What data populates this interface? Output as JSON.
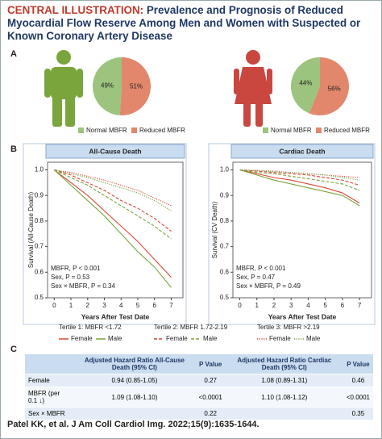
{
  "header": {
    "label": "CENTRAL ILLUSTRATION:",
    "title": "Prevalence and Prognosis of Reduced Myocardial Flow Reserve Among Men and Women with Suspected or Known Coronary Artery Disease"
  },
  "panels": [
    "A",
    "B",
    "C"
  ],
  "chart_data": [
    {
      "type": "pie",
      "categories": [
        "Normal MBFR",
        "Reduced MBFR"
      ],
      "values": [
        49,
        51
      ],
      "value_labels": [
        "49%",
        "51%"
      ],
      "colors": [
        "#9cc47e",
        "#e3876c"
      ]
    },
    {
      "type": "pie",
      "categories": [
        "Normal MBFR",
        "Reduced MBFR"
      ],
      "values": [
        44,
        56
      ],
      "value_labels": [
        "44%",
        "56%"
      ],
      "colors": [
        "#9cc47e",
        "#e3876c"
      ]
    },
    {
      "type": "line",
      "title": "All-Cause Death",
      "xlabel": "Years After Test Date",
      "ylabel": "Survival (All-Cause Death)",
      "x": [
        0,
        1,
        2,
        3,
        4,
        5,
        6,
        7
      ],
      "xlim": [
        -0.4,
        7.7
      ],
      "xticks": [
        0,
        1,
        2,
        3,
        4,
        5,
        6,
        7
      ],
      "ylim": [
        0.5,
        1.03
      ],
      "yticks": [
        0.5,
        0.6,
        0.7,
        0.8,
        0.9,
        {
          "value": 1,
          "label": "1.0"
        }
      ],
      "annotations": [
        "MBFR, P < 0.001",
        "Sex, P = 0.53",
        "Sex × MBFR, P = 0.34"
      ],
      "series": [
        {
          "color": "#d9473b",
          "dash": "solid",
          "values": [
            1.0,
            0.95,
            0.9,
            0.84,
            0.78,
            0.72,
            0.65,
            0.58
          ]
        },
        {
          "color": "#7aa43c",
          "dash": "solid",
          "values": [
            1.0,
            0.94,
            0.88,
            0.82,
            0.75,
            0.68,
            0.62,
            0.54
          ]
        },
        {
          "color": "#d9473b",
          "dash": "dashed",
          "values": [
            1.0,
            0.98,
            0.95,
            0.92,
            0.88,
            0.85,
            0.81,
            0.76
          ]
        },
        {
          "color": "#7aa43c",
          "dash": "dashed",
          "values": [
            1.0,
            0.97,
            0.94,
            0.9,
            0.86,
            0.82,
            0.78,
            0.73
          ]
        },
        {
          "color": "#d9473b",
          "dash": "dotted",
          "values": [
            1.0,
            0.99,
            0.975,
            0.96,
            0.94,
            0.92,
            0.89,
            0.86
          ]
        },
        {
          "color": "#7aa43c",
          "dash": "dotted",
          "values": [
            1.0,
            0.985,
            0.97,
            0.95,
            0.93,
            0.91,
            0.88,
            0.84
          ]
        }
      ]
    },
    {
      "type": "line",
      "title": "Cardiac Death",
      "xlabel": "Years After Test Date",
      "ylabel": "Survival (CV Death)",
      "x": [
        0,
        1,
        2,
        3,
        4,
        5,
        6,
        7
      ],
      "xlim": [
        -0.4,
        7.7
      ],
      "xticks": [
        0,
        1,
        2,
        3,
        4,
        5,
        6,
        7
      ],
      "ylim": [
        0.5,
        1.03
      ],
      "yticks": [
        0.5,
        0.6,
        0.7,
        0.8,
        0.9,
        {
          "value": 1,
          "label": "1.0"
        }
      ],
      "annotations": [
        "MBFR, P < 0.001",
        "Sex, P = 0.47",
        "Sex × MBFR, P = 0.49"
      ],
      "series": [
        {
          "color": "#d9473b",
          "dash": "solid",
          "values": [
            1.0,
            0.985,
            0.97,
            0.96,
            0.945,
            0.93,
            0.91,
            0.87
          ]
        },
        {
          "color": "#7aa43c",
          "dash": "solid",
          "values": [
            1.0,
            0.98,
            0.96,
            0.945,
            0.93,
            0.915,
            0.9,
            0.86
          ]
        },
        {
          "color": "#d9473b",
          "dash": "dashed",
          "values": [
            1.0,
            0.995,
            0.99,
            0.985,
            0.98,
            0.97,
            0.96,
            0.94
          ]
        },
        {
          "color": "#7aa43c",
          "dash": "dashed",
          "values": [
            1.0,
            0.99,
            0.985,
            0.975,
            0.965,
            0.955,
            0.945,
            0.92
          ]
        },
        {
          "color": "#d9473b",
          "dash": "dotted",
          "values": [
            1.0,
            0.998,
            0.995,
            0.99,
            0.985,
            0.98,
            0.975,
            0.97
          ]
        },
        {
          "color": "#7aa43c",
          "dash": "dotted",
          "values": [
            1.0,
            0.997,
            0.993,
            0.99,
            0.985,
            0.98,
            0.97,
            0.96
          ]
        }
      ]
    }
  ],
  "survival_legend": [
    {
      "label": "Tertile 1: MBFR <1.72",
      "items": [
        "Female",
        "Male"
      ]
    },
    {
      "label": "Tertile 2: MBFR 1.72-2.19",
      "items": [
        "Female",
        "Male"
      ]
    },
    {
      "label": "Tertile 3: MBFR >2.19",
      "items": [
        "Female",
        "Male"
      ]
    }
  ],
  "table": {
    "header": [
      null,
      "Adjusted Hazard Ratio All-Cause Death (95% CI)",
      "P Value",
      "Adjusted Hazard Ratio Cardiac Death (95% CI)",
      "P Value"
    ],
    "rows": [
      [
        "Female",
        "0.94 (0.85-1.05)",
        "0.27",
        "1.08 (0.89-1.31)",
        "0.46"
      ],
      [
        "MBFR (per 0.1 ↓)",
        "1.09 (1.08-1.10)",
        "<0.0001",
        "1.10 (1.08-1.12)",
        "<0.0001"
      ],
      [
        "Sex × MBFR",
        null,
        "0.22",
        null,
        "0.35"
      ]
    ]
  },
  "citation": "Patel KK, et al. J Am Coll Cardiol Img. 2022;15(9):1635-1644."
}
